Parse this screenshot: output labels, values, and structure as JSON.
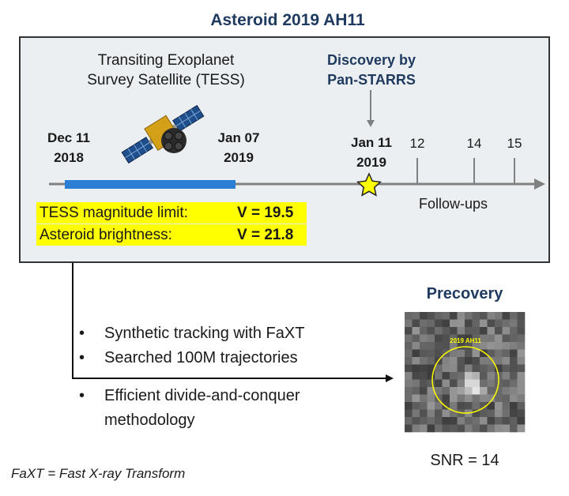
{
  "title": "Asteroid 2019 AH11",
  "tess_label": {
    "line1": "Transiting Exoplanet",
    "line2": "Survey Satellite (TESS)"
  },
  "discovery_label": {
    "line1": "Discovery by",
    "line2": "Pan-STARRS"
  },
  "timeline": {
    "start_date": {
      "line1": "Dec 11",
      "line2": "2018"
    },
    "end_date": {
      "line1": "Jan 07",
      "line2": "2019"
    },
    "discovery_date": {
      "line1": "Jan 11",
      "line2": "2019"
    },
    "followup_ticks": [
      "12",
      "14",
      "15"
    ],
    "followups_label": "Follow-ups"
  },
  "magnitudes": [
    {
      "label": "TESS magnitude limit:",
      "value": "V = 19.5"
    },
    {
      "label": "Asteroid brightness:",
      "value": "V = 21.8"
    }
  ],
  "bullets": [
    "Synthetic tracking with FaXT",
    "Searched 100M trajectories",
    "Efficient divide-and-conquer",
    "methodology"
  ],
  "bullet_symbol": "•",
  "precovery": {
    "title": "Precovery",
    "image_label": "2019 AH11",
    "snr": "SNR = 14"
  },
  "footnote": "FaXT = Fast X-ray Transform",
  "colors": {
    "title": "#1f3a5f",
    "tess_bar": "#2a7fd4",
    "highlight": "#ffff00",
    "star": "#ffff00",
    "circle": "#ffff00"
  },
  "icons": [
    "satellite-icon",
    "star-icon",
    "arrow-down-icon",
    "arrow-right-icon"
  ]
}
